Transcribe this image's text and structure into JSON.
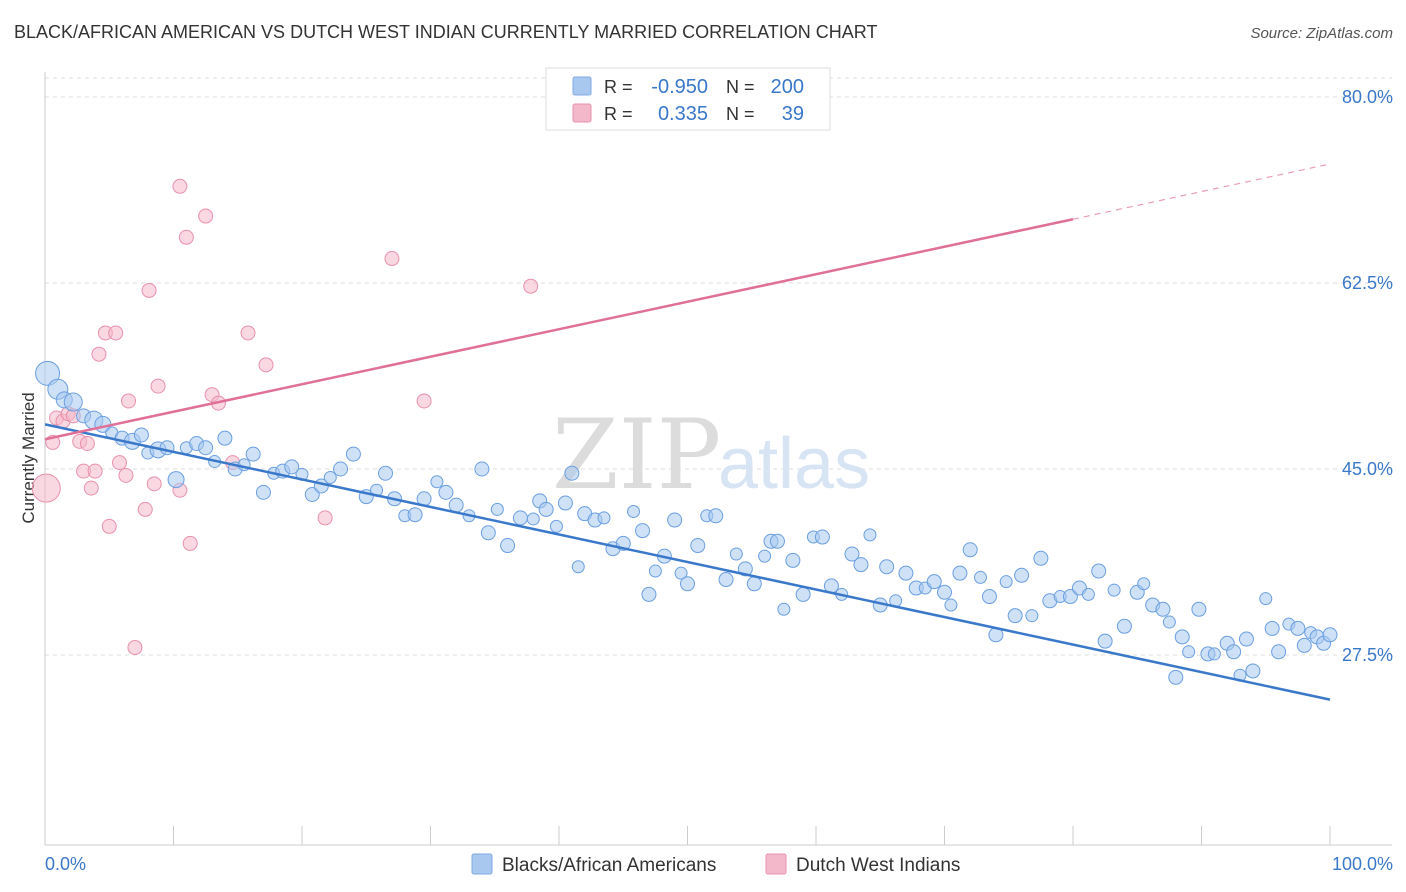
{
  "title": "BLACK/AFRICAN AMERICAN VS DUTCH WEST INDIAN CURRENTLY MARRIED CORRELATION CHART",
  "source": "Source: ZipAtlas.com",
  "watermark": {
    "zip": "ZIP",
    "atlas": "atlas"
  },
  "colors": {
    "blue": "#3a78c9",
    "blue_fill": "#a8c8f0",
    "pink": "#e07098",
    "pink_fill": "#f4b8cb",
    "grid": "#dddddd"
  },
  "legend": {
    "r_label": "R =",
    "n_label": "N =",
    "rows": [
      {
        "r": "-0.950",
        "n": "200"
      },
      {
        "r": "0.335",
        "n": "39"
      }
    ]
  },
  "chart_data": {
    "type": "scatter",
    "title": "BLACK/AFRICAN AMERICAN VS DUTCH WEST INDIAN CURRENTLY MARRIED CORRELATION CHART",
    "xlabel": "",
    "ylabel": "Currently Married",
    "xlim": [
      0,
      100
    ],
    "ylim": [
      10,
      82.5
    ],
    "x_tick_labels": [
      "0.0%",
      "100.0%"
    ],
    "y_ticks": [
      27.5,
      45.0,
      62.5,
      80.0
    ],
    "y_tick_labels": [
      "27.5%",
      "45.0%",
      "62.5%",
      "80.0%"
    ],
    "grid": true,
    "legend_position": "top-center",
    "series": [
      {
        "name": "Blacks/African Americans",
        "color": "#3a78c9",
        "trend": {
          "x": [
            0,
            100
          ],
          "y": [
            49.2,
            23.3
          ]
        },
        "points": [
          [
            0.2,
            54.0,
            12
          ],
          [
            1.0,
            52.5,
            10
          ],
          [
            1.5,
            51.5,
            8
          ],
          [
            2.2,
            51.3,
            9
          ],
          [
            3.0,
            50.0,
            7
          ],
          [
            3.8,
            49.6,
            9
          ],
          [
            4.5,
            49.2,
            8
          ],
          [
            5.2,
            48.4,
            6
          ],
          [
            6.0,
            47.9,
            7
          ],
          [
            6.8,
            47.6,
            8
          ],
          [
            7.5,
            48.2,
            7
          ],
          [
            8.0,
            46.5,
            6
          ],
          [
            8.8,
            46.8,
            8
          ],
          [
            9.5,
            47.0,
            7
          ],
          [
            10.2,
            44.0,
            8
          ],
          [
            11.0,
            47.0,
            6
          ],
          [
            11.8,
            47.4,
            7
          ],
          [
            12.5,
            47.0,
            7
          ],
          [
            13.2,
            45.7,
            6
          ],
          [
            14.0,
            47.9,
            7
          ],
          [
            14.8,
            45.0,
            7
          ],
          [
            15.5,
            45.4,
            6
          ],
          [
            16.2,
            46.4,
            7
          ],
          [
            17.0,
            42.8,
            7
          ],
          [
            17.8,
            44.6,
            6
          ],
          [
            18.5,
            44.8,
            7
          ],
          [
            19.2,
            45.2,
            7
          ],
          [
            20.0,
            44.5,
            6
          ],
          [
            20.8,
            42.6,
            7
          ],
          [
            21.5,
            43.4,
            7
          ],
          [
            22.2,
            44.2,
            6
          ],
          [
            23.0,
            45.0,
            7
          ],
          [
            24.0,
            46.4,
            7
          ],
          [
            25.0,
            42.4,
            7
          ],
          [
            25.8,
            43.0,
            6
          ],
          [
            26.5,
            44.6,
            7
          ],
          [
            27.2,
            42.2,
            7
          ],
          [
            28.0,
            40.6,
            6
          ],
          [
            28.8,
            40.7,
            7
          ],
          [
            29.5,
            42.2,
            7
          ],
          [
            30.5,
            43.8,
            6
          ],
          [
            31.2,
            42.8,
            7
          ],
          [
            32.0,
            41.6,
            7
          ],
          [
            33.0,
            40.6,
            6
          ],
          [
            34.0,
            45.0,
            7
          ],
          [
            34.5,
            39.0,
            7
          ],
          [
            35.2,
            41.2,
            6
          ],
          [
            36.0,
            37.8,
            7
          ],
          [
            37.0,
            40.4,
            7
          ],
          [
            38.0,
            40.3,
            6
          ],
          [
            38.5,
            42.0,
            7
          ],
          [
            39.0,
            41.2,
            7
          ],
          [
            39.8,
            39.6,
            6
          ],
          [
            40.5,
            41.8,
            7
          ],
          [
            41.0,
            44.6,
            7
          ],
          [
            41.5,
            35.8,
            6
          ],
          [
            42.0,
            40.8,
            7
          ],
          [
            42.8,
            40.2,
            7
          ],
          [
            43.5,
            40.4,
            6
          ],
          [
            44.2,
            37.5,
            7
          ],
          [
            45.0,
            38.0,
            7
          ],
          [
            45.8,
            41.0,
            6
          ],
          [
            46.5,
            39.2,
            7
          ],
          [
            47.0,
            33.2,
            7
          ],
          [
            47.5,
            35.4,
            6
          ],
          [
            48.2,
            36.8,
            7
          ],
          [
            49.0,
            40.2,
            7
          ],
          [
            49.5,
            35.2,
            6
          ],
          [
            50.0,
            34.2,
            7
          ],
          [
            50.8,
            37.8,
            7
          ],
          [
            51.5,
            40.6,
            6
          ],
          [
            52.2,
            40.6,
            7
          ],
          [
            53.0,
            34.6,
            7
          ],
          [
            53.8,
            37.0,
            6
          ],
          [
            54.5,
            35.6,
            7
          ],
          [
            55.2,
            34.2,
            7
          ],
          [
            56.0,
            36.8,
            6
          ],
          [
            56.5,
            38.2,
            7
          ],
          [
            57.0,
            38.2,
            7
          ],
          [
            57.5,
            31.8,
            6
          ],
          [
            58.2,
            36.4,
            7
          ],
          [
            59.0,
            33.2,
            7
          ],
          [
            59.8,
            38.6,
            6
          ],
          [
            60.5,
            38.6,
            7
          ],
          [
            61.2,
            34.0,
            7
          ],
          [
            62.0,
            33.2,
            6
          ],
          [
            62.8,
            37.0,
            7
          ],
          [
            63.5,
            36.0,
            7
          ],
          [
            64.2,
            38.8,
            6
          ],
          [
            65.0,
            32.2,
            7
          ],
          [
            65.5,
            35.8,
            7
          ],
          [
            66.2,
            32.6,
            6
          ],
          [
            67.0,
            35.2,
            7
          ],
          [
            67.8,
            33.8,
            7
          ],
          [
            68.5,
            33.8,
            6
          ],
          [
            69.2,
            34.4,
            7
          ],
          [
            70.0,
            33.4,
            7
          ],
          [
            70.5,
            32.2,
            6
          ],
          [
            71.2,
            35.2,
            7
          ],
          [
            72.0,
            37.4,
            7
          ],
          [
            72.8,
            34.8,
            6
          ],
          [
            73.5,
            33.0,
            7
          ],
          [
            74.0,
            29.4,
            7
          ],
          [
            74.8,
            34.4,
            6
          ],
          [
            75.5,
            31.2,
            7
          ],
          [
            76.0,
            35.0,
            7
          ],
          [
            76.8,
            31.2,
            6
          ],
          [
            77.5,
            36.6,
            7
          ],
          [
            78.2,
            32.6,
            7
          ],
          [
            79.0,
            33.0,
            6
          ],
          [
            79.8,
            33.0,
            7
          ],
          [
            80.5,
            33.8,
            7
          ],
          [
            81.2,
            33.2,
            6
          ],
          [
            82.0,
            35.4,
            7
          ],
          [
            82.5,
            28.8,
            7
          ],
          [
            83.2,
            33.6,
            6
          ],
          [
            84.0,
            30.2,
            7
          ],
          [
            85.0,
            33.4,
            7
          ],
          [
            85.5,
            34.2,
            6
          ],
          [
            86.2,
            32.2,
            7
          ],
          [
            87.0,
            31.8,
            7
          ],
          [
            87.5,
            30.6,
            6
          ],
          [
            88.0,
            25.4,
            7
          ],
          [
            88.5,
            29.2,
            7
          ],
          [
            89.0,
            27.8,
            6
          ],
          [
            89.8,
            31.8,
            7
          ],
          [
            90.5,
            27.6,
            7
          ],
          [
            91.0,
            27.6,
            6
          ],
          [
            92.0,
            28.6,
            7
          ],
          [
            92.5,
            27.8,
            7
          ],
          [
            93.0,
            25.6,
            6
          ],
          [
            93.5,
            29.0,
            7
          ],
          [
            94.0,
            26.0,
            7
          ],
          [
            95.0,
            32.8,
            6
          ],
          [
            95.5,
            30.0,
            7
          ],
          [
            96.0,
            27.8,
            7
          ],
          [
            96.8,
            30.4,
            6
          ],
          [
            97.5,
            30.0,
            7
          ],
          [
            98.0,
            28.4,
            7
          ],
          [
            98.5,
            29.6,
            6
          ],
          [
            99.0,
            29.2,
            7
          ],
          [
            99.5,
            28.6,
            7
          ],
          [
            100.0,
            29.4,
            7
          ]
        ]
      },
      {
        "name": "Dutch West Indians",
        "color": "#e07098",
        "trend": {
          "x": [
            0,
            80
          ],
          "y": [
            47.8,
            68.5
          ]
        },
        "trend_dashed": {
          "x": [
            80,
            100
          ],
          "y": [
            68.5,
            73.7
          ]
        },
        "points": [
          [
            0.1,
            43.2,
            14
          ],
          [
            0.6,
            47.5,
            7
          ],
          [
            0.9,
            49.8,
            7
          ],
          [
            1.4,
            49.5,
            7
          ],
          [
            1.8,
            50.2,
            7
          ],
          [
            2.2,
            50.0,
            7
          ],
          [
            2.7,
            47.6,
            7
          ],
          [
            3.0,
            44.8,
            7
          ],
          [
            3.3,
            47.4,
            7
          ],
          [
            3.6,
            43.2,
            7
          ],
          [
            3.9,
            44.8,
            7
          ],
          [
            4.2,
            55.8,
            7
          ],
          [
            4.7,
            57.8,
            7
          ],
          [
            5.0,
            39.6,
            7
          ],
          [
            5.5,
            57.8,
            7
          ],
          [
            5.8,
            45.6,
            7
          ],
          [
            6.3,
            44.4,
            7
          ],
          [
            6.5,
            51.4,
            7
          ],
          [
            7.0,
            28.2,
            7
          ],
          [
            7.8,
            41.2,
            7
          ],
          [
            8.1,
            61.8,
            7
          ],
          [
            8.5,
            43.6,
            7
          ],
          [
            8.8,
            52.8,
            7
          ],
          [
            10.5,
            43.0,
            7
          ],
          [
            10.5,
            71.6,
            7
          ],
          [
            11.0,
            66.8,
            7
          ],
          [
            11.3,
            38.0,
            7
          ],
          [
            12.5,
            68.8,
            7
          ],
          [
            13.0,
            52.0,
            7
          ],
          [
            13.5,
            51.2,
            7
          ],
          [
            14.6,
            45.6,
            7
          ],
          [
            15.8,
            57.8,
            7
          ],
          [
            17.2,
            54.8,
            7
          ],
          [
            21.8,
            40.4,
            7
          ],
          [
            27.0,
            64.8,
            7
          ],
          [
            29.5,
            51.4,
            7
          ],
          [
            37.8,
            62.2,
            7
          ]
        ]
      }
    ]
  }
}
